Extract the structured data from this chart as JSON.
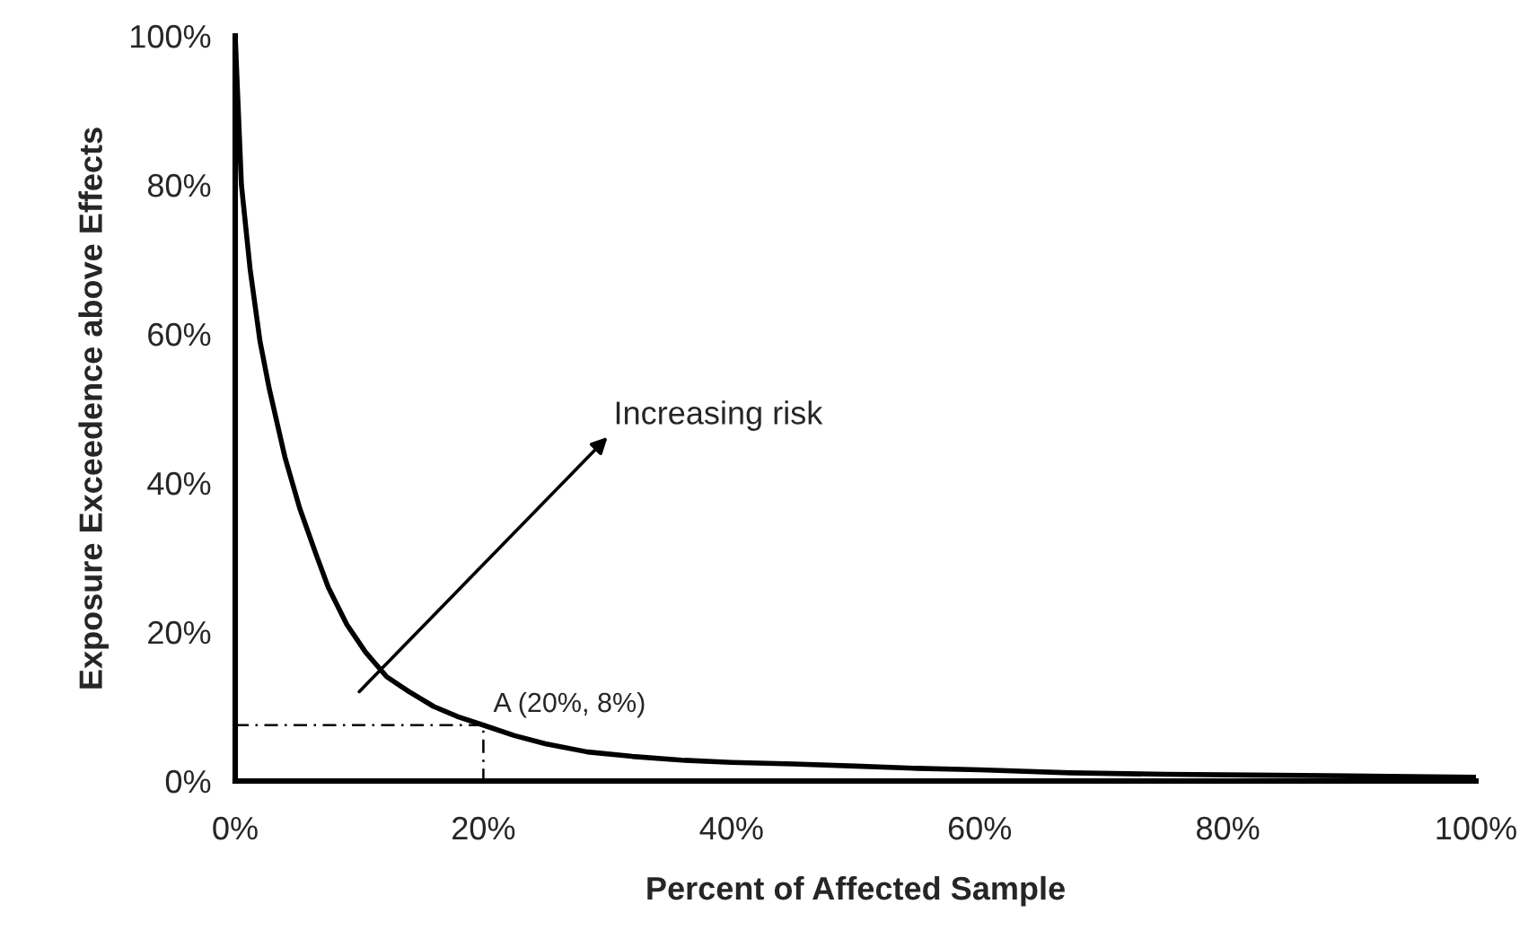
{
  "chart_data": {
    "type": "line",
    "xlabel": "Percent of Affected Sample",
    "ylabel": "Exposure Exceedence above Effects",
    "series": [
      {
        "color": "#000000",
        "line_style": "solid",
        "x": [
          0,
          0.2,
          0.5,
          1.2,
          2,
          2.75,
          4,
          5.2,
          6.5,
          7.5,
          9,
          10.5,
          12.2,
          14,
          16,
          18,
          20,
          22.5,
          25,
          28.4,
          32,
          36,
          40,
          45,
          50,
          55,
          60,
          67.3,
          75,
          82,
          90,
          100
        ],
        "values": [
          100,
          92,
          80,
          68.7,
          59,
          52.6,
          43.5,
          36.6,
          30.5,
          26,
          21,
          17.3,
          14,
          12,
          10,
          8.6,
          7.5,
          6.1,
          5,
          3.9,
          3.3,
          2.8,
          2.5,
          2.3,
          2,
          1.7,
          1.5,
          1.1,
          0.9,
          0.8,
          0.7,
          0.5
        ]
      },
      {
        "color": "#000000",
        "line_style": "dashed",
        "x": [
          0,
          20,
          20
        ],
        "values": [
          7.5,
          7.5,
          0
        ]
      }
    ],
    "xlim": [
      0,
      100
    ],
    "ylim": [
      0,
      100
    ],
    "xticks": [
      {
        "value": 0,
        "label": "0%"
      },
      {
        "value": 20,
        "label": "20%"
      },
      {
        "value": 40,
        "label": "40%"
      },
      {
        "value": 60,
        "label": "60%"
      },
      {
        "value": 80,
        "label": "80%"
      },
      {
        "value": 100,
        "label": "100%"
      }
    ],
    "yticks": [
      {
        "value": 0,
        "label": "0%"
      },
      {
        "value": 20,
        "label": "20%"
      },
      {
        "value": 40,
        "label": "40%"
      },
      {
        "value": 60,
        "label": "60%"
      },
      {
        "value": 80,
        "label": "80%"
      },
      {
        "value": 100,
        "label": "100%"
      }
    ],
    "grid": false,
    "legend": false,
    "marker": "none",
    "annotations": [
      "Increasing risk",
      {
        "text": "A (20%, 8%)",
        "x": 20,
        "y": 7.5
      }
    ]
  }
}
